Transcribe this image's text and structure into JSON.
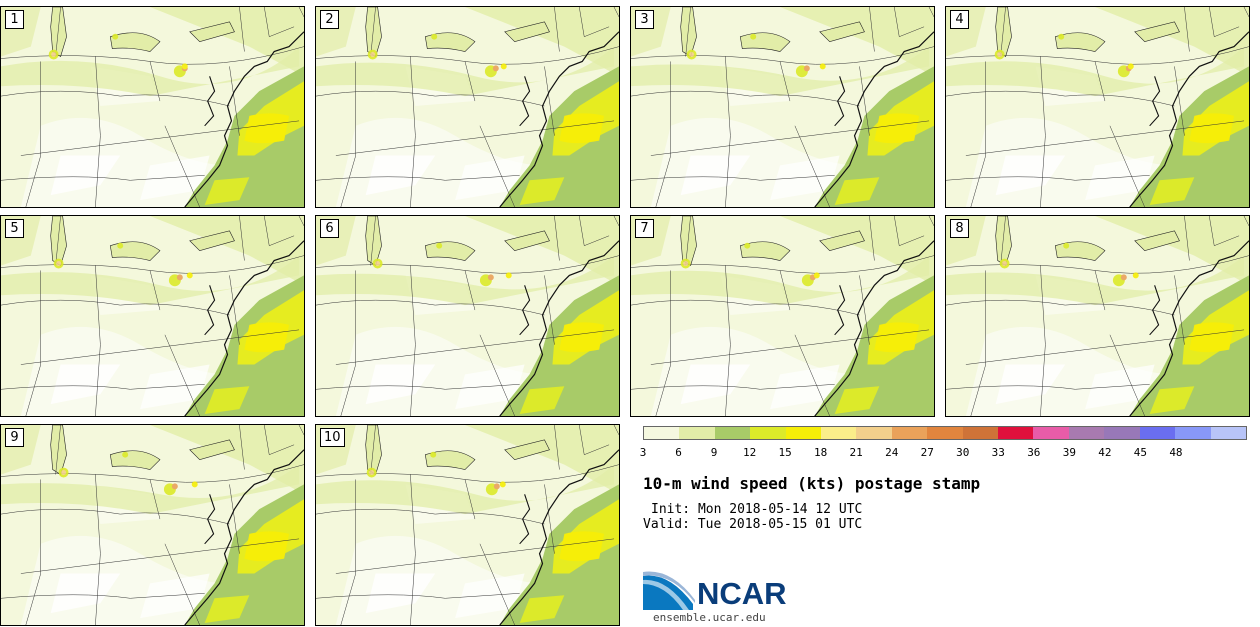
{
  "panels": [
    "1",
    "2",
    "3",
    "4",
    "5",
    "6",
    "7",
    "8",
    "9",
    "10"
  ],
  "colorbar": {
    "colors": [
      "#f5f8e0",
      "#e2eda8",
      "#a8cb68",
      "#dcea2a",
      "#f6ee08",
      "#fbee8a",
      "#f3d08c",
      "#eaa25a",
      "#e1853e",
      "#cf7338",
      "#e0103c",
      "#e85ca8",
      "#a87ab0",
      "#9878b8",
      "#6a6ef0",
      "#8898f8",
      "#b8c4f8"
    ],
    "ticks": [
      "3",
      "6",
      "9",
      "12",
      "15",
      "18",
      "21",
      "24",
      "27",
      "30",
      "33",
      "36",
      "39",
      "42",
      "45",
      "48"
    ]
  },
  "title": "10-m wind speed (kts) postage stamp",
  "init": "Init: Mon 2018-05-14 12 UTC",
  "valid": "Valid: Tue 2018-05-15 01 UTC",
  "logo": {
    "name": "NCAR",
    "url": "ensemble.ucar.edu"
  },
  "colors": {
    "land_light": "#f4f8dc",
    "land_mid": "#e2eda8",
    "ocean_green": "#a8cb68",
    "ocean_yellow": "#e6ec20",
    "ncar_blue": "#0a3d7a"
  }
}
